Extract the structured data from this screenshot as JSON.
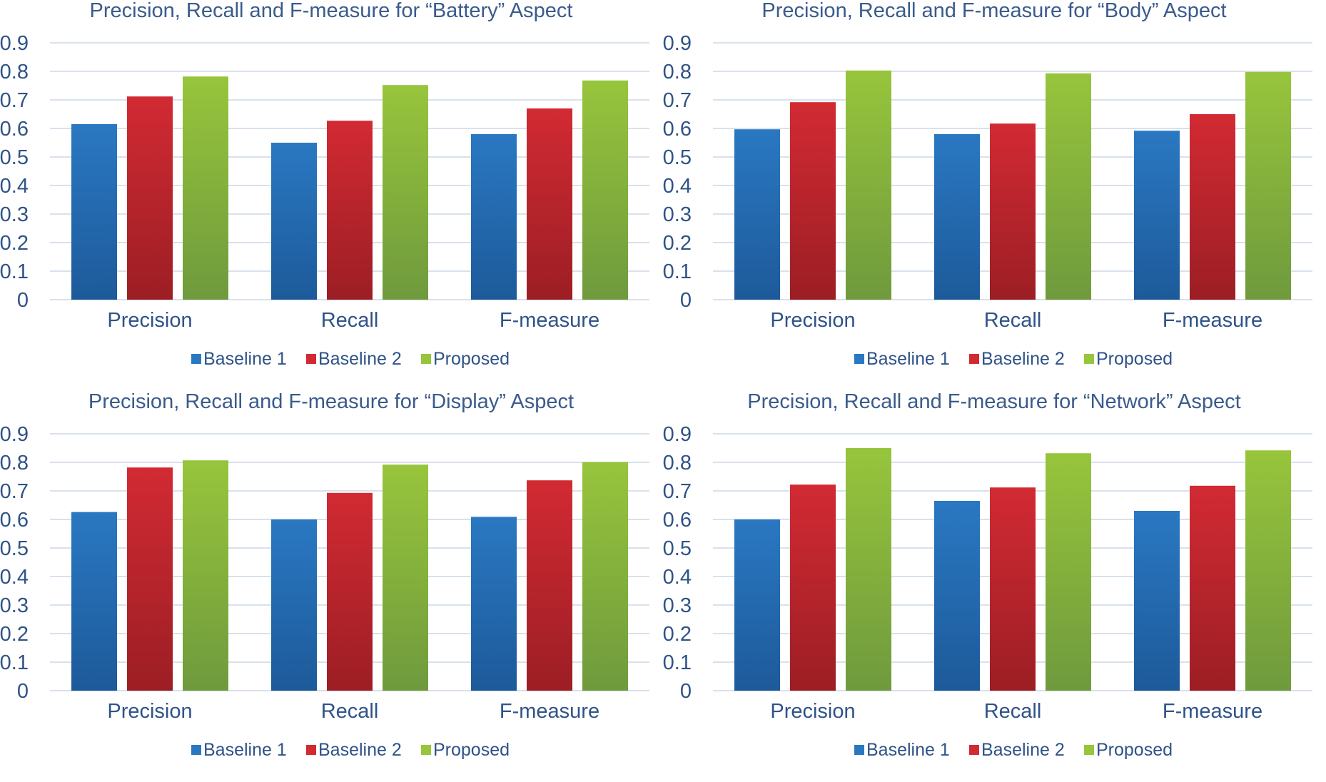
{
  "chart_data": [
    {
      "type": "bar",
      "title": "Precision, Recall and F-measure for “Battery” Aspect",
      "categories": [
        "Precision",
        "Recall",
        "F-measure"
      ],
      "series": [
        {
          "name": "Baseline 1",
          "values": [
            0.615,
            0.55,
            0.58
          ]
        },
        {
          "name": "Baseline 2",
          "values": [
            0.712,
            0.627,
            0.67
          ]
        },
        {
          "name": "Proposed",
          "values": [
            0.782,
            0.752,
            0.768
          ]
        }
      ],
      "yticks": [
        "0",
        "0.1",
        "0.2",
        "0.3",
        "0.4",
        "0.5",
        "0.6",
        "0.7",
        "0.8",
        "0.9"
      ],
      "ylim": [
        0,
        0.9
      ],
      "grid": true,
      "legend": "bottom",
      "xlabel": "",
      "ylabel": ""
    },
    {
      "type": "bar",
      "title": "Precision, Recall and F-measure for “Body” Aspect",
      "categories": [
        "Precision",
        "Recall",
        "F-measure"
      ],
      "series": [
        {
          "name": "Baseline 1",
          "values": [
            0.597,
            0.58,
            0.592
          ]
        },
        {
          "name": "Baseline 2",
          "values": [
            0.692,
            0.617,
            0.65
          ]
        },
        {
          "name": "Proposed",
          "values": [
            0.803,
            0.793,
            0.798
          ]
        }
      ],
      "yticks": [
        "0",
        "0.1",
        "0.2",
        "0.3",
        "0.4",
        "0.5",
        "0.6",
        "0.7",
        "0.8",
        "0.9"
      ],
      "ylim": [
        0,
        0.9
      ],
      "grid": true,
      "legend": "bottom",
      "xlabel": "",
      "ylabel": ""
    },
    {
      "type": "bar",
      "title": "Precision, Recall and F-measure for “Display” Aspect",
      "categories": [
        "Precision",
        "Recall",
        "F-measure"
      ],
      "series": [
        {
          "name": "Baseline 1",
          "values": [
            0.626,
            0.6,
            0.609
          ]
        },
        {
          "name": "Baseline 2",
          "values": [
            0.782,
            0.693,
            0.737
          ]
        },
        {
          "name": "Proposed",
          "values": [
            0.807,
            0.792,
            0.801
          ]
        }
      ],
      "yticks": [
        "0",
        "0.1",
        "0.2",
        "0.3",
        "0.4",
        "0.5",
        "0.6",
        "0.7",
        "0.8",
        "0.9"
      ],
      "ylim": [
        0,
        0.9
      ],
      "grid": true,
      "legend": "bottom",
      "xlabel": "",
      "ylabel": ""
    },
    {
      "type": "bar",
      "title": "Precision, Recall and F-measure for “Network” Aspect",
      "categories": [
        "Precision",
        "Recall",
        "F-measure"
      ],
      "series": [
        {
          "name": "Baseline 1",
          "values": [
            0.6,
            0.665,
            0.63
          ]
        },
        {
          "name": "Baseline 2",
          "values": [
            0.722,
            0.712,
            0.718
          ]
        },
        {
          "name": "Proposed",
          "values": [
            0.85,
            0.832,
            0.842
          ]
        }
      ],
      "yticks": [
        "0",
        "0.1",
        "0.2",
        "0.3",
        "0.4",
        "0.5",
        "0.6",
        "0.7",
        "0.8",
        "0.9"
      ],
      "ylim": [
        0,
        0.9
      ],
      "grid": true,
      "legend": "bottom",
      "xlabel": "",
      "ylabel": ""
    }
  ],
  "colors": {
    "Baseline 1": {
      "top": "#2a78c2",
      "bottom": "#1d5a9a"
    },
    "Baseline 2": {
      "top": "#d22a33",
      "bottom": "#9c1e24"
    },
    "Proposed": {
      "top": "#97c53c",
      "bottom": "#6f9a3d"
    }
  }
}
